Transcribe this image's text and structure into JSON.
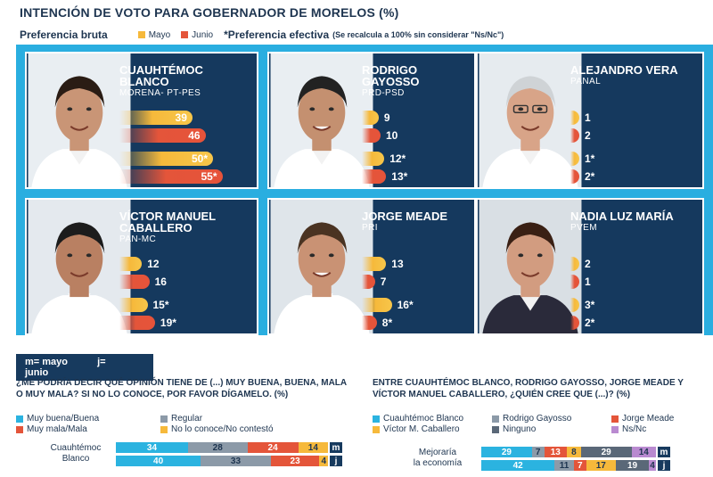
{
  "title": "INTENCIÓN DE VOTO PARA GOBERNADOR DE MORELOS (%)",
  "legend": {
    "bruta": "Preferencia bruta",
    "mayo": "Mayo",
    "junio": "Junio",
    "efectiva": "*Preferencia efectiva",
    "efectiva_note": "(Se recalcula a 100% sin considerar \"Ns/Nc\")",
    "colors": {
      "mayo": "#f6b93b",
      "junio": "#e4553a"
    }
  },
  "chart_data": [
    {
      "type": "bar",
      "title": "INTENCIÓN DE VOTO PARA GOBERNADOR DE MORELOS (%)",
      "series_labels": [
        "Mayo (bruta)",
        "Junio (bruta)",
        "Mayo (efectiva)",
        "Junio (efectiva)"
      ],
      "candidates": [
        {
          "name": "CUAUHTÉMOC\nBLANCO",
          "party": "MORENA- PT-PES",
          "values": [
            39,
            46,
            50,
            55
          ],
          "labels": [
            "39",
            "46",
            "50*",
            "55*"
          ]
        },
        {
          "name": "RODRIGO\nGAYOSSO",
          "party": "PRD-PSD",
          "values": [
            9,
            10,
            12,
            13
          ],
          "labels": [
            "9",
            "10",
            "12*",
            "13*"
          ]
        },
        {
          "name": "ALEJANDRO VERA",
          "party": "PANAL",
          "values": [
            1,
            2,
            1,
            2
          ],
          "labels": [
            "1",
            "2",
            "1*",
            "2*"
          ]
        },
        {
          "name": "VÍCTOR MANUEL\nCABALLERO",
          "party": "PAN-MC",
          "values": [
            12,
            16,
            15,
            19
          ],
          "labels": [
            "12",
            "16",
            "15*",
            "19*"
          ]
        },
        {
          "name": "JORGE MEADE",
          "party": "PRI",
          "values": [
            13,
            7,
            16,
            8
          ],
          "labels": [
            "13",
            "7",
            "16*",
            "8*"
          ]
        },
        {
          "name": "NADIA LUZ MARÍA",
          "party": "PVEM",
          "values": [
            2,
            1,
            3,
            2
          ],
          "labels": [
            "2",
            "1",
            "3*",
            "2*"
          ]
        }
      ]
    },
    {
      "type": "bar",
      "title": "¿ME PODRÍA DECIR QUÉ OPINIÓN TIENE DE (...) MUY BUENA, BUENA, MALA O MUY MALA? SI NO LO CONOCE, POR FAVOR DÍGAMELO. (%)",
      "legend": [
        "Muy buena/Buena",
        "Regular",
        "Muy mala/Mala",
        "No lo conoce/No contestó"
      ],
      "colors": [
        "#2bb3e0",
        "#8c9aa8",
        "#e4553a",
        "#f6b93b"
      ],
      "rows": [
        {
          "label": "Cuauhtémoc\nBlanco",
          "m": [
            34,
            28,
            24,
            14
          ],
          "j": [
            40,
            33,
            23,
            4
          ]
        }
      ]
    },
    {
      "type": "bar",
      "title": "ENTRE CUAUHTÉMOC BLANCO, RODRIGO GAYOSSO, JORGE MEADE Y VÍCTOR MANUEL CABALLERO, ¿QUIÉN CREE QUE (...)? (%)",
      "legend": [
        "Cuauhtémoc Blanco",
        "Rodrigo Gayosso",
        "Jorge Meade",
        "Víctor M. Caballero",
        "Ninguno",
        "Ns/Nc"
      ],
      "colors": [
        "#2bb3e0",
        "#8c9aa8",
        "#e4553a",
        "#f6b93b",
        "#5a6878",
        "#b98ad0"
      ],
      "rows": [
        {
          "label": "Mejoraría\nla economía",
          "m": [
            29,
            7,
            13,
            8,
            29,
            14
          ],
          "j": [
            42,
            11,
            7,
            17,
            19,
            4
          ]
        }
      ]
    }
  ],
  "mj_legend": {
    "m": "m= mayo",
    "j": "j= junio"
  },
  "tag_m": "m",
  "tag_j": "j"
}
